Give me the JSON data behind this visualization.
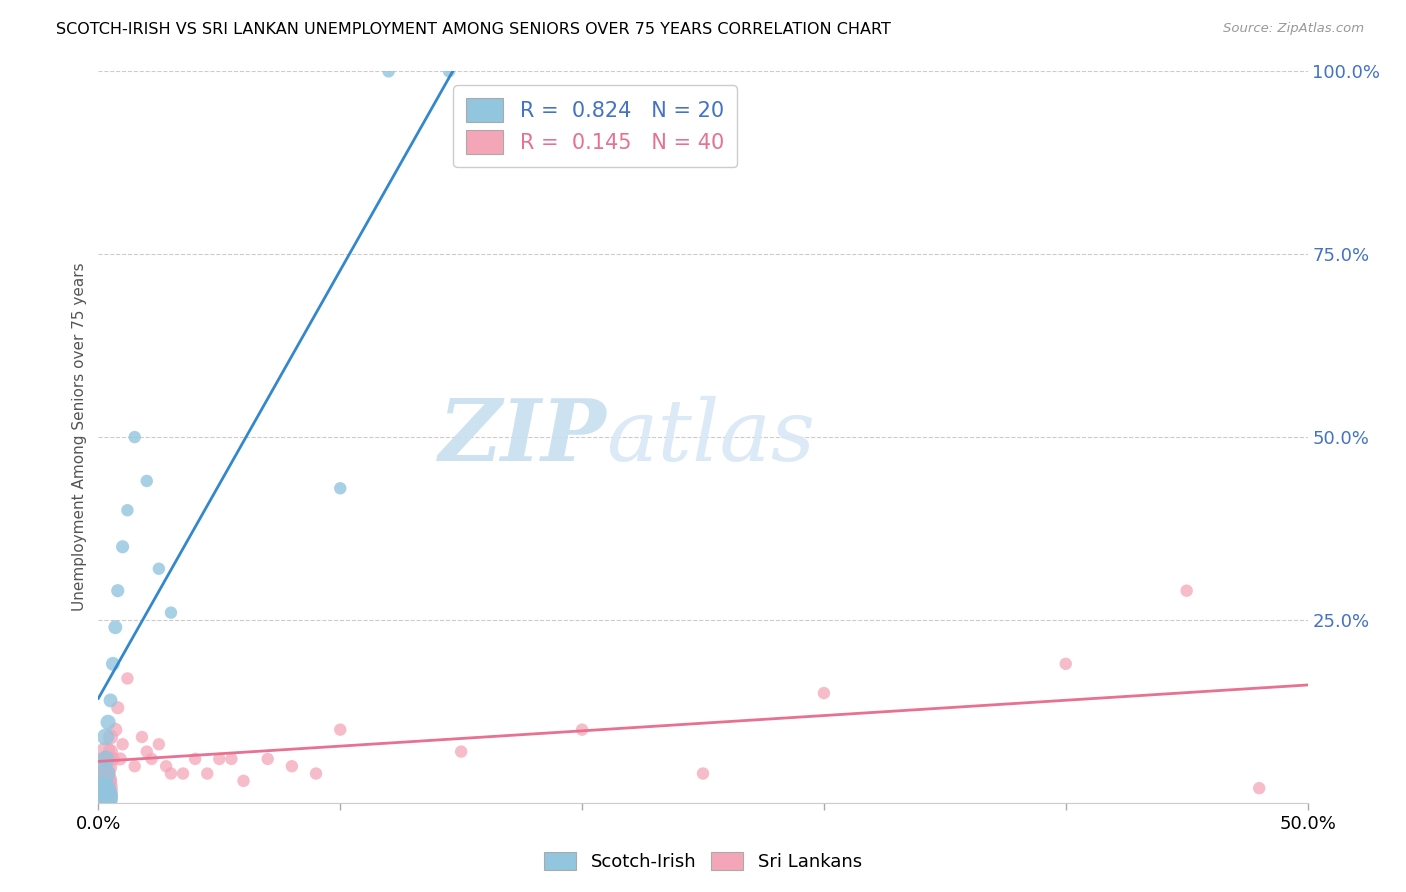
{
  "title": "SCOTCH-IRISH VS SRI LANKAN UNEMPLOYMENT AMONG SENIORS OVER 75 YEARS CORRELATION CHART",
  "source": "Source: ZipAtlas.com",
  "ylabel": "Unemployment Among Seniors over 75 years",
  "watermark_zip": "ZIP",
  "watermark_atlas": "atlas",
  "xmin": 0.0,
  "xmax": 0.5,
  "ymin": 0.0,
  "ymax": 1.0,
  "yticks": [
    0.0,
    0.25,
    0.5,
    0.75,
    1.0
  ],
  "ytick_labels_right": [
    "",
    "25.0%",
    "50.0%",
    "75.0%",
    "100.0%"
  ],
  "scotch_color": "#92c5de",
  "sri_color": "#f4a6b8",
  "scotch_line_color": "#3388cc",
  "sri_line_color": "#e87090",
  "scotch_x": [
    0.001,
    0.001,
    0.002,
    0.002,
    0.003,
    0.003,
    0.004,
    0.005,
    0.006,
    0.007,
    0.008,
    0.01,
    0.012,
    0.015,
    0.02,
    0.025,
    0.03,
    0.1,
    0.12,
    0.145
  ],
  "scotch_y": [
    0.005,
    0.01,
    0.02,
    0.04,
    0.06,
    0.09,
    0.11,
    0.14,
    0.19,
    0.24,
    0.29,
    0.35,
    0.4,
    0.5,
    0.44,
    0.32,
    0.26,
    0.43,
    1.0,
    1.0
  ],
  "sri_x": [
    0.001,
    0.001,
    0.002,
    0.002,
    0.003,
    0.003,
    0.004,
    0.004,
    0.005,
    0.005,
    0.006,
    0.007,
    0.008,
    0.009,
    0.01,
    0.012,
    0.015,
    0.018,
    0.02,
    0.022,
    0.025,
    0.028,
    0.03,
    0.035,
    0.04,
    0.045,
    0.05,
    0.055,
    0.06,
    0.07,
    0.08,
    0.09,
    0.1,
    0.15,
    0.2,
    0.25,
    0.3,
    0.4,
    0.45,
    0.48
  ],
  "sri_y": [
    0.01,
    0.02,
    0.03,
    0.05,
    0.04,
    0.07,
    0.06,
    0.03,
    0.07,
    0.09,
    0.06,
    0.1,
    0.13,
    0.06,
    0.08,
    0.17,
    0.05,
    0.09,
    0.07,
    0.06,
    0.08,
    0.05,
    0.04,
    0.04,
    0.06,
    0.04,
    0.06,
    0.06,
    0.03,
    0.06,
    0.05,
    0.04,
    0.1,
    0.07,
    0.1,
    0.04,
    0.15,
    0.19,
    0.29,
    0.02
  ],
  "scotch_sizes": [
    600,
    600,
    300,
    300,
    150,
    150,
    120,
    100,
    100,
    100,
    90,
    90,
    80,
    80,
    80,
    80,
    80,
    80,
    80,
    80
  ],
  "sri_sizes": [
    600,
    600,
    400,
    400,
    200,
    200,
    150,
    150,
    120,
    120,
    100,
    100,
    90,
    90,
    80,
    80,
    80,
    80,
    80,
    80,
    80,
    80,
    80,
    80,
    80,
    80,
    80,
    80,
    80,
    80,
    80,
    80,
    80,
    80,
    80,
    80,
    80,
    80,
    80,
    80
  ],
  "background_color": "#ffffff",
  "grid_color": "#cccccc",
  "legend_r_scotch": "0.824",
  "legend_n_scotch": "20",
  "legend_r_sri": "0.145",
  "legend_n_sri": "40",
  "legend_color_scotch": "#4472c4",
  "legend_color_sri": "#e87090"
}
